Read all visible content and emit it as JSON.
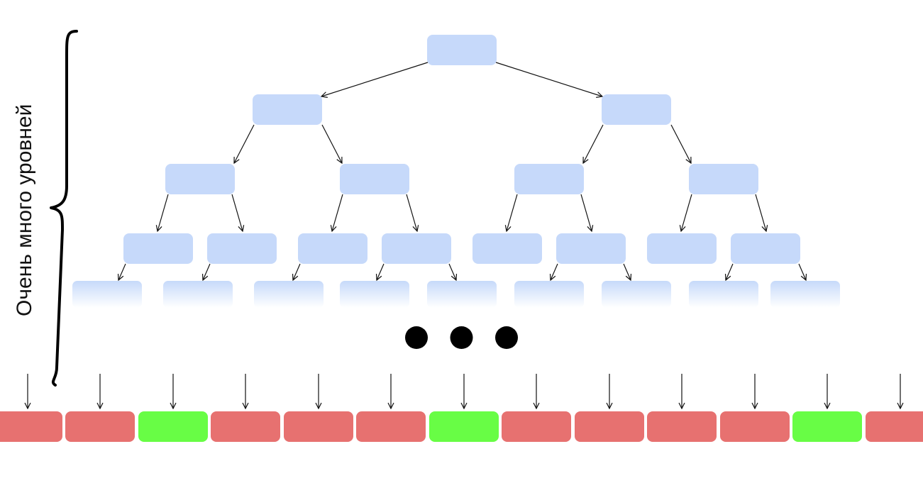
{
  "diagram": {
    "label": "Очень много уровней",
    "colors": {
      "node": "#c6d9fa",
      "leaf_negative": "#e77170",
      "leaf_positive": "#68fd45",
      "arrow": "#111111",
      "brace": "#000000",
      "dots": "#000000"
    },
    "levels": 5,
    "ellipsis_dots": 3,
    "leaf_results": [
      "negative",
      "negative",
      "positive",
      "negative",
      "negative",
      "negative",
      "positive",
      "negative",
      "negative",
      "negative",
      "negative",
      "positive",
      "negative"
    ]
  }
}
